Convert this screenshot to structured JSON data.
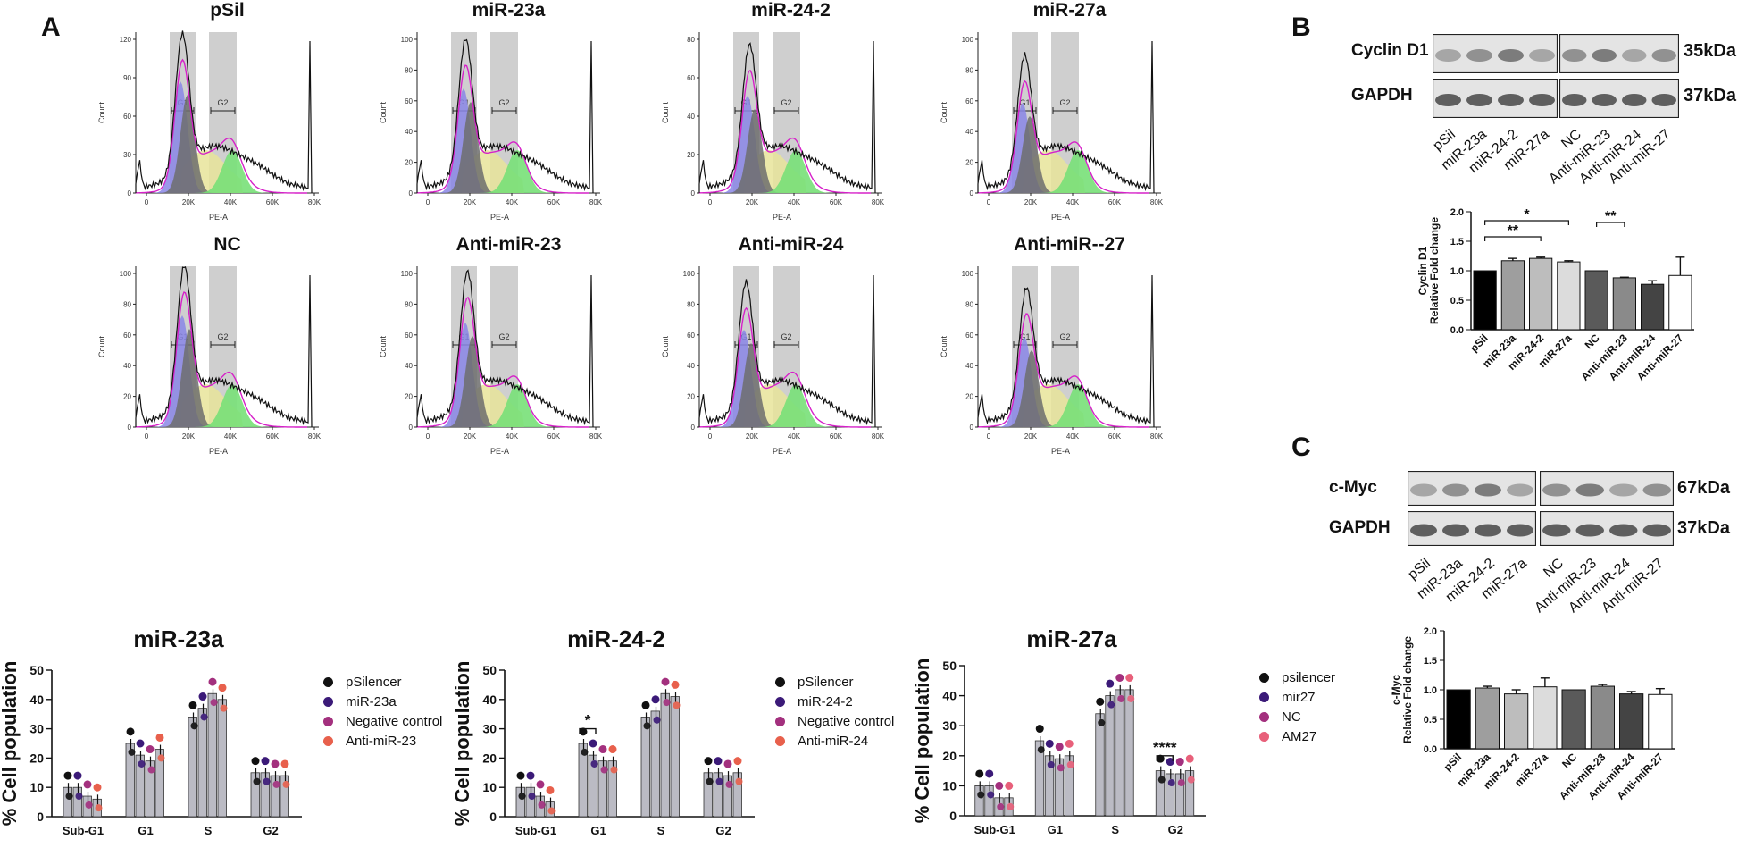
{
  "panels": {
    "a": "A",
    "b": "B",
    "c": "C"
  },
  "flow": {
    "x_label": "PE-A",
    "y_label": "Count",
    "x_ticks": [
      "0",
      "20K",
      "40K",
      "60K",
      "80K"
    ],
    "gate_labels": [
      "G1",
      "G2"
    ],
    "plots": [
      {
        "title": "pSil",
        "y_ticks": [
          "0",
          "30",
          "60",
          "90",
          "120"
        ]
      },
      {
        "title": "miR-23a",
        "y_ticks": [
          "0",
          "20",
          "40",
          "60",
          "80",
          "100"
        ]
      },
      {
        "title": "miR-24-2",
        "y_ticks": [
          "0",
          "20",
          "40",
          "60",
          "80"
        ]
      },
      {
        "title": "miR-27a",
        "y_ticks": [
          "0",
          "20",
          "40",
          "60",
          "80",
          "100"
        ]
      },
      {
        "title": "NC",
        "y_ticks": [
          "0",
          "20",
          "40",
          "60",
          "80",
          "100"
        ]
      },
      {
        "title": "Anti-miR-23",
        "y_ticks": [
          "0",
          "20",
          "40",
          "60",
          "80",
          "100"
        ]
      },
      {
        "title": "Anti-miR-24",
        "y_ticks": [
          "0",
          "20",
          "40",
          "60",
          "80",
          "100"
        ]
      },
      {
        "title": "Anti-miR--27",
        "y_ticks": [
          "0",
          "20",
          "40",
          "60",
          "80",
          "100"
        ]
      }
    ]
  },
  "chart_data": [
    {
      "type": "bar",
      "title": "miR-23a",
      "ylabel": "% Cell population",
      "categories": [
        "Sub-G1",
        "G1",
        "S",
        "G2"
      ],
      "ylim": [
        0,
        50
      ],
      "yticks": [
        0,
        10,
        20,
        30,
        40,
        50
      ],
      "series": [
        {
          "name": "pSilencer",
          "color": "#111111",
          "values": [
            10,
            25,
            34,
            15
          ]
        },
        {
          "name": "miR-23a",
          "color": "#3b1a78",
          "values": [
            10,
            21,
            37,
            15
          ]
        },
        {
          "name": "Negative control",
          "color": "#a3307e",
          "values": [
            7,
            19,
            42,
            14
          ]
        },
        {
          "name": "Anti-miR-23",
          "color": "#e8604c",
          "values": [
            6,
            23,
            40,
            14
          ]
        }
      ],
      "significance": []
    },
    {
      "type": "bar",
      "title": "miR-24-2",
      "ylabel": "% Cell population",
      "categories": [
        "Sub-G1",
        "G1",
        "S",
        "G2"
      ],
      "ylim": [
        0,
        50
      ],
      "yticks": [
        0,
        10,
        20,
        30,
        40,
        50
      ],
      "series": [
        {
          "name": "pSilencer",
          "color": "#111111",
          "values": [
            10,
            25,
            34,
            15
          ]
        },
        {
          "name": "miR-24-2",
          "color": "#3b1a78",
          "values": [
            10,
            21,
            36,
            15
          ]
        },
        {
          "name": "Negative control",
          "color": "#a3307e",
          "values": [
            7,
            19,
            42,
            14
          ]
        },
        {
          "name": "Anti-miR-24",
          "color": "#e8604c",
          "values": [
            5,
            19,
            41,
            15
          ]
        }
      ],
      "significance": [
        {
          "group": "G1",
          "label": "*"
        }
      ]
    },
    {
      "type": "bar",
      "title": "miR-27a",
      "ylabel": "% Cell population",
      "categories": [
        "Sub-G1",
        "G1",
        "S",
        "G2"
      ],
      "ylim": [
        0,
        50
      ],
      "yticks": [
        0,
        10,
        20,
        30,
        40,
        50
      ],
      "series": [
        {
          "name": "psilencer",
          "color": "#111111",
          "values": [
            10,
            25,
            34,
            15
          ]
        },
        {
          "name": "mir27",
          "color": "#3b1a78",
          "values": [
            10,
            20,
            40,
            14
          ]
        },
        {
          "name": "NC",
          "color": "#a3307e",
          "values": [
            6,
            19,
            42,
            14
          ]
        },
        {
          "name": "AM27",
          "color": "#e8607a",
          "values": [
            6,
            20,
            42,
            15
          ]
        }
      ],
      "significance": [
        {
          "group": "G2",
          "label": "****"
        }
      ]
    },
    {
      "type": "bar",
      "title": "Cyclin D1",
      "ylabel": "Cyclin D1\nRelative Fold change",
      "categories": [
        "pSil",
        "miR-23a",
        "miR-24-2",
        "miR-27a",
        "NC",
        "Anti-miR-23",
        "Anti-miR-24",
        "Anti-miR-27"
      ],
      "values": [
        1.0,
        1.17,
        1.21,
        1.15,
        1.0,
        0.88,
        0.77,
        0.92
      ],
      "errors": [
        0.0,
        0.04,
        0.02,
        0.02,
        0.0,
        0.01,
        0.06,
        0.31
      ],
      "colors": [
        "#000000",
        "#9e9e9e",
        "#bdbdbd",
        "#dcdcdc",
        "#5a5a5a",
        "#8a8a8a",
        "#444444",
        "#ffffff"
      ],
      "ylim": [
        0,
        2.0
      ],
      "yticks": [
        "0.0",
        "0.5",
        "1.0",
        "1.5",
        "2.0"
      ],
      "significance": [
        {
          "from": "pSil",
          "to": "miR-27a",
          "label": "*"
        },
        {
          "from": "pSil",
          "to": "miR-24-2",
          "label": "**"
        },
        {
          "from": "NC",
          "to": "Anti-miR-23",
          "label": "**"
        }
      ]
    },
    {
      "type": "bar",
      "title": "c-Myc",
      "ylabel": "c-Myc\nRelative Fold change",
      "categories": [
        "pSil",
        "miR-23a",
        "miR-24-2",
        "miR-27a",
        "NC",
        "Anti-miR-23",
        "Anti-miR-24",
        "Anti-miR-27"
      ],
      "values": [
        1.0,
        1.03,
        0.93,
        1.05,
        1.0,
        1.06,
        0.93,
        0.92
      ],
      "errors": [
        0.0,
        0.03,
        0.07,
        0.15,
        0.0,
        0.03,
        0.04,
        0.1
      ],
      "colors": [
        "#000000",
        "#9e9e9e",
        "#bdbdbd",
        "#dcdcdc",
        "#5a5a5a",
        "#8a8a8a",
        "#444444",
        "#ffffff"
      ],
      "ylim": [
        0,
        2.0
      ],
      "yticks": [
        "0.0",
        "0.5",
        "1.0",
        "1.5",
        "2.0"
      ],
      "significance": []
    }
  ],
  "blots": {
    "b": {
      "rows": [
        {
          "label": "Cyclin D1",
          "size": "35kDa"
        },
        {
          "label": "GAPDH",
          "size": "37kDa"
        }
      ],
      "lanes": [
        "pSil",
        "miR-23a",
        "miR-24-2",
        "miR-27a",
        "NC",
        "Anti-miR-23",
        "Anti-miR-24",
        "Anti-miR-27"
      ]
    },
    "c": {
      "rows": [
        {
          "label": "c-Myc",
          "size": "67kDa"
        },
        {
          "label": "GAPDH",
          "size": "37kDa"
        }
      ],
      "lanes": [
        "pSil",
        "miR-23a",
        "miR-24-2",
        "miR-27a",
        "NC",
        "Anti-miR-23",
        "Anti-miR-24",
        "Anti-miR-27"
      ]
    }
  }
}
